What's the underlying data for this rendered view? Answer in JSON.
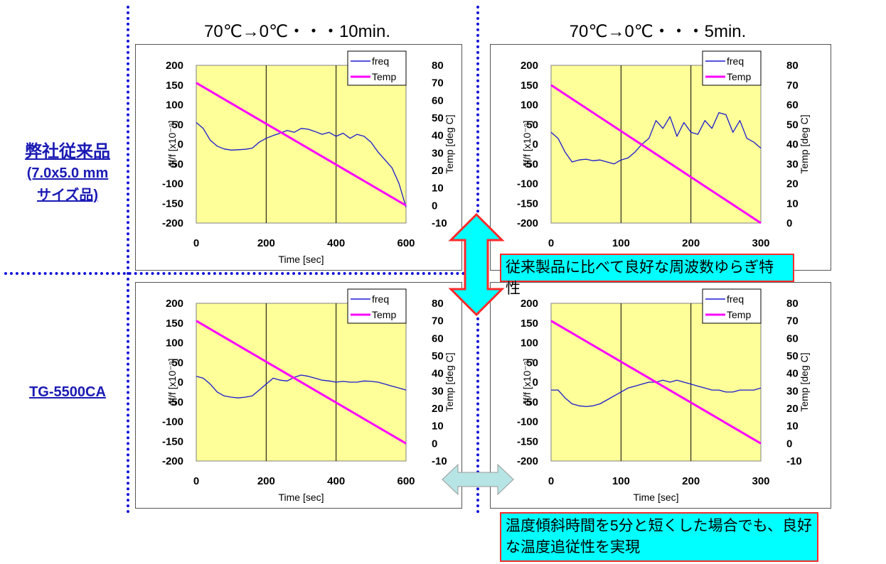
{
  "columns": [
    {
      "title": "70℃→0℃・・・10min."
    },
    {
      "title": "70℃→0℃・・・5min."
    }
  ],
  "rows": [
    {
      "label_lines": [
        "弊社従来品",
        "(7.0x5.0 mm",
        "サイズ品)"
      ]
    },
    {
      "label_lines": [
        "TG-5500CA"
      ]
    }
  ],
  "callouts": {
    "top": "従来製品に比べて良好な周波数ゆらぎ特性",
    "bottom_line1": "温度傾斜時間を5分と短くした場合でも、良好",
    "bottom_line2": "な温度追従性を実現"
  },
  "colors": {
    "freq": "#1a1ad0",
    "temp": "#ff00ff",
    "plot_bg": "#ffff99",
    "guide": "#1212d8",
    "arrow_top_fill": "#00ffff",
    "arrow_top_stroke": "#ff2a2a",
    "arrow_bottom_fill": "#b7e4e4"
  },
  "chart_data": [
    {
      "id": "conv-10min",
      "type": "line",
      "xlabel": "Time [sec]",
      "ylabel": "df/f [x10⁻⁹]",
      "y2label": "Temp [deg C]",
      "xlim": [
        0,
        600
      ],
      "xticks": [
        0,
        200,
        400,
        600
      ],
      "ylim": [
        -200,
        200
      ],
      "yticks": [
        200,
        150,
        100,
        50,
        0,
        -50,
        -100,
        -150,
        -200
      ],
      "y2lim": [
        -10,
        80
      ],
      "y2ticks": [
        80,
        70,
        60,
        50,
        40,
        30,
        20,
        10,
        0,
        -10
      ],
      "legend": [
        "freq",
        "Temp"
      ],
      "legend_position": "top-right",
      "series": [
        {
          "name": "freq",
          "axis": "left",
          "x": [
            0,
            20,
            40,
            60,
            80,
            100,
            120,
            140,
            160,
            180,
            200,
            220,
            240,
            260,
            280,
            300,
            320,
            340,
            360,
            380,
            400,
            420,
            440,
            460,
            480,
            500,
            520,
            540,
            560,
            580,
            600
          ],
          "y": [
            55,
            40,
            10,
            -5,
            -12,
            -15,
            -14,
            -13,
            -10,
            5,
            15,
            22,
            28,
            35,
            30,
            40,
            38,
            32,
            25,
            30,
            20,
            28,
            15,
            25,
            20,
            5,
            -20,
            -40,
            -60,
            -100,
            -160
          ]
        },
        {
          "name": "Temp",
          "axis": "right",
          "x": [
            0,
            600
          ],
          "y": [
            70,
            0
          ]
        }
      ]
    },
    {
      "id": "conv-5min",
      "type": "line",
      "xlabel": "",
      "ylabel": "df/f [x10⁻⁹]",
      "y2label": "Temp [deg C]",
      "xlim": [
        0,
        300
      ],
      "xticks": [
        0,
        100,
        200,
        300
      ],
      "ylim": [
        -200,
        200
      ],
      "yticks": [
        200,
        150,
        100,
        50,
        0,
        -50,
        -100,
        -150,
        -200
      ],
      "y2lim": [
        0,
        80
      ],
      "y2ticks": [
        80,
        70,
        60,
        50,
        40,
        30,
        20,
        10,
        0
      ],
      "legend": [
        "freq",
        "Temp"
      ],
      "legend_position": "top-right",
      "series": [
        {
          "name": "freq",
          "axis": "left",
          "x": [
            0,
            10,
            20,
            30,
            40,
            50,
            60,
            70,
            80,
            90,
            100,
            110,
            120,
            130,
            140,
            150,
            160,
            170,
            180,
            190,
            200,
            210,
            220,
            230,
            240,
            250,
            260,
            270,
            280,
            290,
            300
          ],
          "y": [
            30,
            15,
            -20,
            -45,
            -40,
            -38,
            -42,
            -40,
            -45,
            -50,
            -40,
            -35,
            -20,
            0,
            15,
            60,
            40,
            70,
            20,
            55,
            30,
            25,
            60,
            40,
            80,
            75,
            30,
            60,
            15,
            5,
            -10
          ]
        },
        {
          "name": "Temp",
          "axis": "right",
          "x": [
            0,
            300
          ],
          "y": [
            70,
            0
          ]
        }
      ]
    },
    {
      "id": "tg5500-10min",
      "type": "line",
      "xlabel": "Time [sec]",
      "ylabel": "df/f [x10⁻⁹]",
      "y2label": "Temp [deg C]",
      "xlim": [
        0,
        600
      ],
      "xticks": [
        0,
        200,
        400,
        600
      ],
      "ylim": [
        -200,
        200
      ],
      "yticks": [
        200,
        150,
        100,
        50,
        0,
        -50,
        -100,
        -150,
        -200
      ],
      "y2lim": [
        -10,
        80
      ],
      "y2ticks": [
        80,
        70,
        60,
        50,
        40,
        30,
        20,
        10,
        0,
        -10
      ],
      "legend": [
        "freq",
        "Temp"
      ],
      "legend_position": "top-right",
      "series": [
        {
          "name": "freq",
          "axis": "left",
          "x": [
            0,
            20,
            40,
            60,
            80,
            100,
            120,
            140,
            160,
            180,
            200,
            220,
            240,
            260,
            280,
            300,
            320,
            340,
            360,
            380,
            400,
            420,
            440,
            460,
            480,
            500,
            520,
            540,
            560,
            580,
            600
          ],
          "y": [
            15,
            10,
            -5,
            -25,
            -35,
            -38,
            -40,
            -38,
            -35,
            -20,
            -5,
            10,
            5,
            3,
            12,
            18,
            15,
            10,
            5,
            3,
            0,
            2,
            0,
            0,
            3,
            2,
            0,
            -5,
            -10,
            -15,
            -20
          ]
        },
        {
          "name": "Temp",
          "axis": "right",
          "x": [
            0,
            600
          ],
          "y": [
            70,
            0
          ]
        }
      ]
    },
    {
      "id": "tg5500-5min",
      "type": "line",
      "xlabel": "Time [sec]",
      "ylabel": "df/f [x10⁻⁹]",
      "y2label": "Temp [deg C]",
      "xlim": [
        0,
        300
      ],
      "xticks": [
        0,
        100,
        200,
        300
      ],
      "ylim": [
        -200,
        200
      ],
      "yticks": [
        200,
        150,
        100,
        50,
        0,
        -50,
        -100,
        -150,
        -200
      ],
      "y2lim": [
        -10,
        80
      ],
      "y2ticks": [
        80,
        70,
        60,
        50,
        40,
        30,
        20,
        10,
        0,
        -10
      ],
      "legend": [
        "freq",
        "Temp"
      ],
      "legend_position": "top-right",
      "series": [
        {
          "name": "freq",
          "axis": "left",
          "x": [
            0,
            10,
            20,
            30,
            40,
            50,
            60,
            70,
            80,
            90,
            100,
            110,
            120,
            130,
            140,
            150,
            160,
            170,
            180,
            190,
            200,
            210,
            220,
            230,
            240,
            250,
            260,
            270,
            280,
            290,
            300
          ],
          "y": [
            -20,
            -20,
            -40,
            -55,
            -60,
            -62,
            -60,
            -55,
            -45,
            -35,
            -25,
            -15,
            -10,
            -5,
            0,
            0,
            5,
            0,
            5,
            0,
            -5,
            -10,
            -15,
            -20,
            -20,
            -25,
            -25,
            -20,
            -20,
            -20,
            -15
          ]
        },
        {
          "name": "Temp",
          "axis": "right",
          "x": [
            0,
            300
          ],
          "y": [
            70,
            0
          ]
        }
      ]
    }
  ]
}
